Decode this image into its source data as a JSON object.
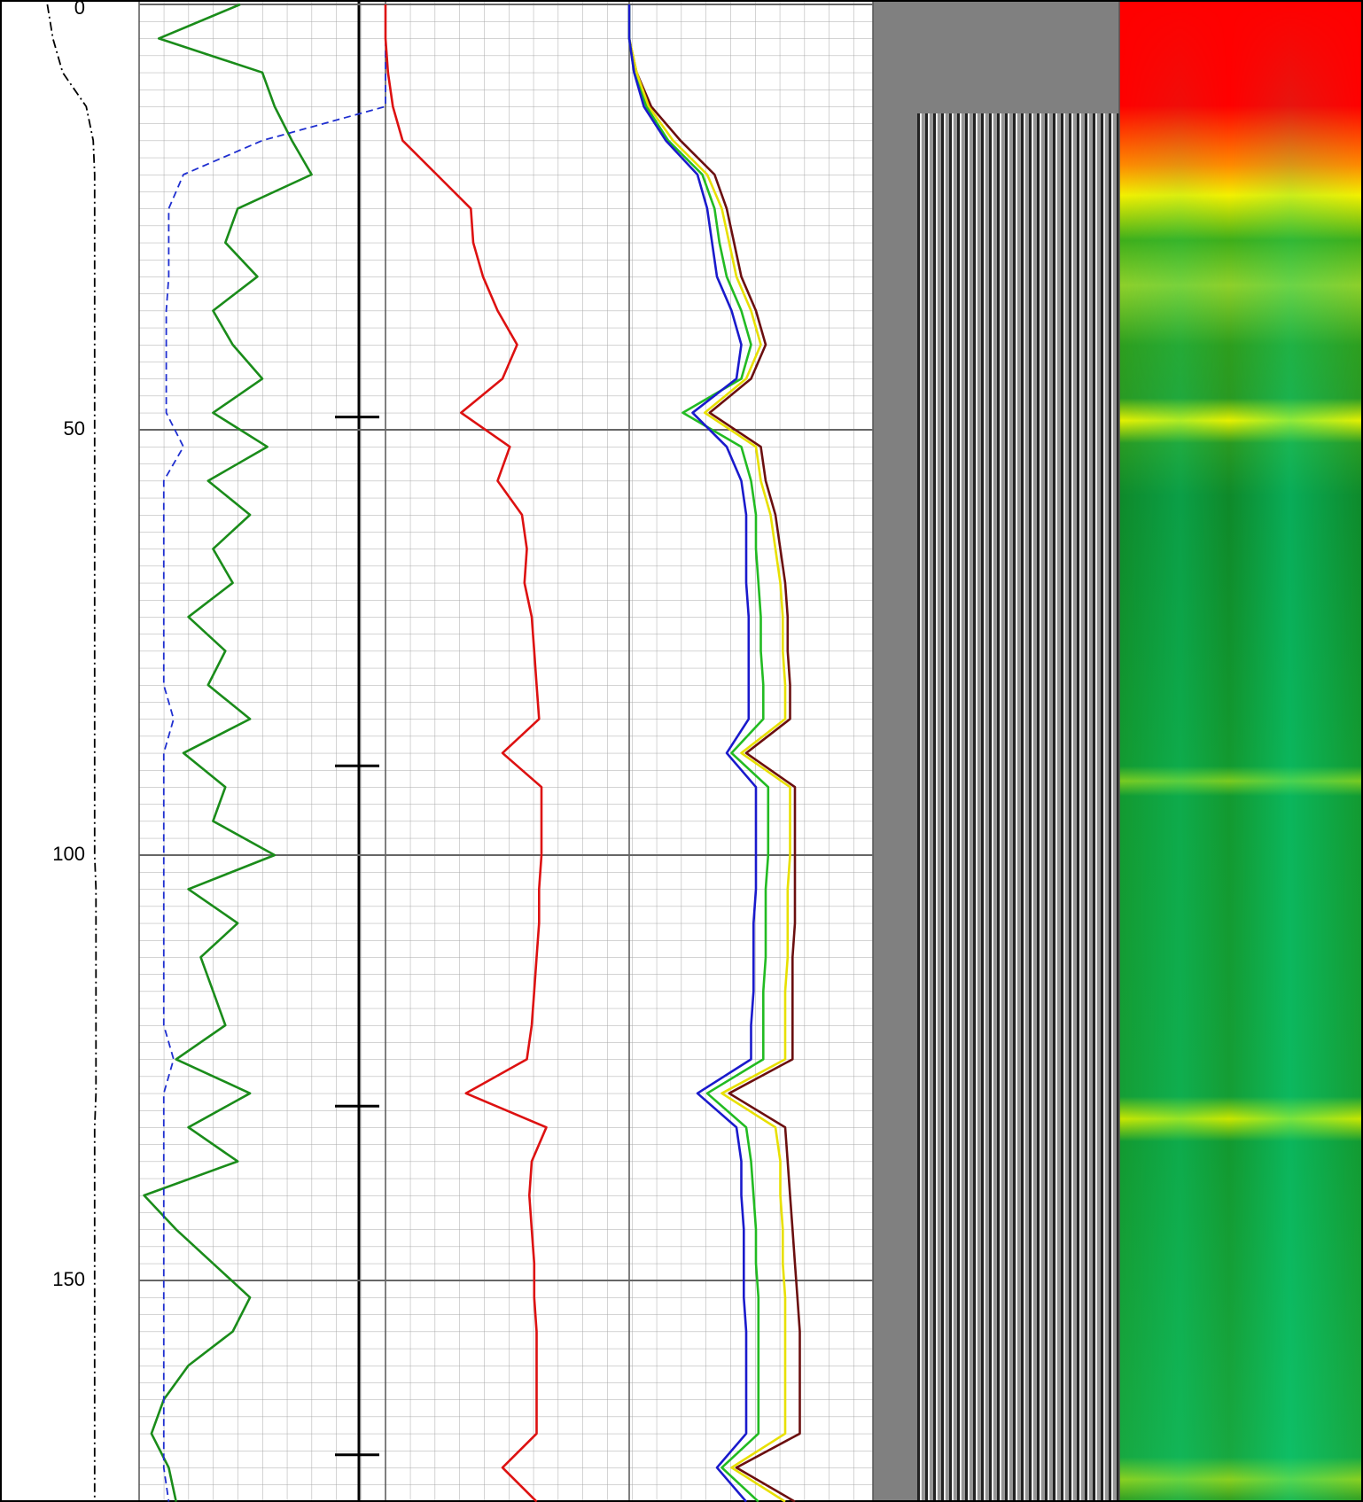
{
  "chart_data": {
    "type": "well-log",
    "ylim": [
      0,
      176
    ],
    "yticks": [
      0,
      50,
      100,
      150
    ],
    "xlim": [
      0,
      100
    ],
    "grid": true,
    "depth": [
      0,
      4,
      8,
      12,
      16,
      20,
      24,
      28,
      32,
      36,
      40,
      44,
      48,
      52,
      56,
      60,
      64,
      68,
      72,
      76,
      80,
      84,
      88,
      92,
      96,
      100,
      104,
      108,
      112,
      116,
      120,
      124,
      128,
      132,
      136,
      140,
      144,
      148,
      152,
      156,
      160,
      164,
      168,
      172,
      176
    ],
    "events": [
      48.5,
      89.5,
      129.5,
      170.5
    ],
    "series": [
      {
        "track": 1,
        "color": "#1a8c1a",
        "style": "solid",
        "values": [
          41,
          8,
          50,
          55,
          62,
          70,
          40,
          35,
          48,
          30,
          38,
          50,
          30,
          52,
          28,
          45,
          30,
          38,
          20,
          35,
          28,
          45,
          18,
          35,
          30,
          55,
          20,
          40,
          25,
          30,
          35,
          15,
          45,
          20,
          40,
          2,
          15,
          30,
          45,
          38,
          20,
          10,
          5,
          12,
          15
        ]
      },
      {
        "track": 1,
        "color": "#1f2fd0",
        "style": "dashed",
        "values": [
          100,
          100,
          100,
          100,
          50,
          18,
          12,
          12,
          12,
          11,
          11,
          11,
          11,
          18,
          10,
          10,
          10,
          10,
          10,
          10,
          10,
          14,
          10,
          10,
          10,
          10,
          10,
          10,
          10,
          10,
          10,
          14,
          10,
          10,
          10,
          10,
          10,
          10,
          10,
          10,
          10,
          10,
          10,
          10,
          12
        ]
      },
      {
        "track": 0,
        "color": "#000000",
        "style": "dashdot",
        "values": [
          34,
          38,
          45,
          62,
          67,
          68,
          68,
          68,
          68,
          68,
          68,
          68,
          68,
          68,
          68,
          68,
          68,
          68,
          68,
          68,
          68,
          68,
          68,
          68,
          68,
          68,
          69,
          69,
          69,
          69,
          69,
          69,
          69,
          68,
          68,
          68,
          68,
          68,
          68,
          68,
          68,
          68,
          68,
          68,
          68
        ]
      },
      {
        "track": 2,
        "color": "#dd1111",
        "style": "solid",
        "values": [
          0,
          0,
          1,
          3,
          7,
          21,
          35,
          36,
          40,
          46,
          54,
          48,
          31,
          51,
          46,
          56,
          58,
          57,
          60,
          61,
          62,
          63,
          48,
          64,
          64,
          64,
          63,
          63,
          62,
          61,
          60,
          58,
          33,
          66,
          60,
          59,
          60,
          61,
          61,
          62,
          62,
          62,
          62,
          48,
          62
        ]
      },
      {
        "track": 3,
        "color": "#6b0f0f",
        "style": "solid",
        "values": [
          0,
          0,
          3,
          9,
          21,
          35,
          40,
          43,
          46,
          52,
          56,
          50,
          33,
          54,
          56,
          60,
          62,
          64,
          65,
          65,
          66,
          66,
          48,
          68,
          68,
          68,
          68,
          68,
          67,
          67,
          67,
          67,
          41,
          64,
          65,
          66,
          67,
          68,
          69,
          70,
          70,
          70,
          70,
          44,
          68
        ]
      },
      {
        "track": 3,
        "color": "#e8e000",
        "style": "solid",
        "values": [
          0,
          0,
          3,
          8,
          18,
          32,
          38,
          41,
          44,
          50,
          54,
          48,
          31,
          52,
          54,
          58,
          60,
          62,
          63,
          63,
          64,
          64,
          46,
          66,
          66,
          66,
          65,
          65,
          65,
          64,
          64,
          64,
          38,
          60,
          62,
          62,
          63,
          63,
          64,
          64,
          64,
          64,
          64,
          42,
          64
        ]
      },
      {
        "track": 3,
        "color": "#22bb22",
        "style": "solid",
        "values": [
          0,
          0,
          2,
          7,
          16,
          30,
          35,
          37,
          40,
          46,
          50,
          46,
          22,
          46,
          50,
          52,
          52,
          53,
          54,
          54,
          55,
          55,
          42,
          57,
          57,
          57,
          56,
          56,
          56,
          55,
          55,
          55,
          32,
          48,
          50,
          51,
          52,
          52,
          53,
          53,
          53,
          53,
          53,
          38,
          53
        ]
      },
      {
        "track": 3,
        "color": "#1a1acc",
        "style": "solid",
        "values": [
          0,
          0,
          2,
          6,
          15,
          28,
          32,
          34,
          36,
          42,
          46,
          44,
          26,
          40,
          46,
          48,
          48,
          48,
          49,
          49,
          49,
          49,
          40,
          52,
          52,
          52,
          52,
          51,
          51,
          51,
          50,
          50,
          28,
          44,
          46,
          46,
          47,
          47,
          47,
          48,
          48,
          48,
          48,
          36,
          48
        ]
      }
    ]
  }
}
